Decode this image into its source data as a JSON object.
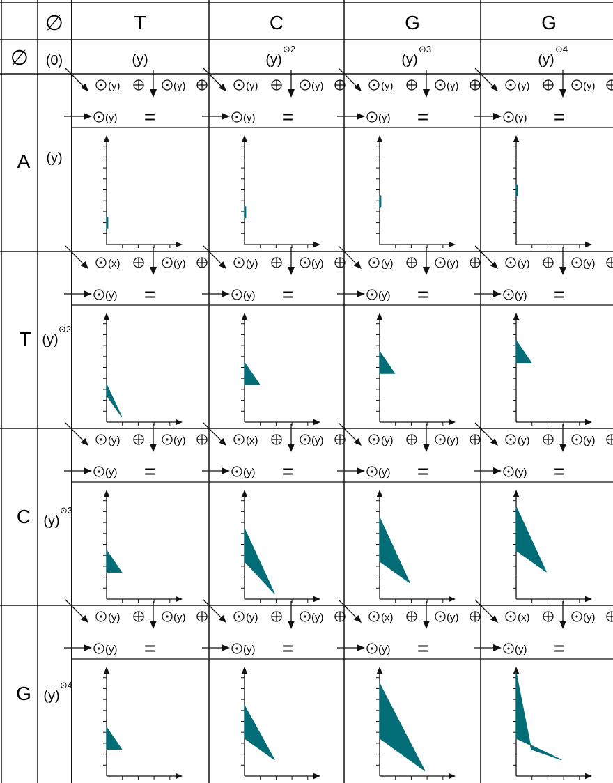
{
  "corner_symbol": "∅",
  "column_headers": [
    "T",
    "C",
    "G",
    "G"
  ],
  "column_subheaders": [
    {
      "base": "(y)",
      "sup": ""
    },
    {
      "base": "(y)",
      "sup": "⊙2"
    },
    {
      "base": "(y)",
      "sup": "⊙3"
    },
    {
      "base": "(y)",
      "sup": "⊙4"
    }
  ],
  "row0": {
    "symbol": "∅",
    "label": "(0)"
  },
  "row_headers": [
    "A",
    "T",
    "C",
    "G"
  ],
  "row_subheaders": [
    {
      "base": "(y)",
      "sup": ""
    },
    {
      "base": "(y)",
      "sup": "⊙2"
    },
    {
      "base": "(y)",
      "sup": "⊙3"
    },
    {
      "base": "(y)",
      "sup": "⊙4"
    }
  ],
  "cell_equation": {
    "odot": "⊙",
    "oplus": "⊕",
    "second": "(y)",
    "result": "(y)",
    "equals": "="
  },
  "cells": [
    [
      {
        "first": "(y)",
        "shape": [
          [
            0,
            1.45
          ],
          [
            0,
            2.45
          ],
          [
            0.08,
            2.45
          ],
          [
            0.08,
            1.45
          ]
        ]
      },
      {
        "first": "(y)",
        "shape": [
          [
            0,
            2.45
          ],
          [
            0,
            3.45
          ],
          [
            0.08,
            3.45
          ],
          [
            0.08,
            2.45
          ]
        ]
      },
      {
        "first": "(y)",
        "shape": [
          [
            0,
            3.45
          ],
          [
            0,
            4.45
          ],
          [
            0.08,
            4.45
          ],
          [
            0.08,
            3.45
          ]
        ]
      },
      {
        "first": "(y)",
        "shape": [
          [
            0,
            4.45
          ],
          [
            0,
            5.45
          ],
          [
            0.08,
            5.45
          ],
          [
            0.08,
            4.45
          ]
        ]
      }
    ],
    [
      {
        "first": "(x)",
        "shape": [
          [
            0,
            2.45
          ],
          [
            0,
            3.45
          ],
          [
            0.95,
            0.5
          ]
        ]
      },
      {
        "first": "(y)",
        "shape": [
          [
            0,
            3.45
          ],
          [
            0,
            5.45
          ],
          [
            0.95,
            3.45
          ]
        ]
      },
      {
        "first": "(y)",
        "shape": [
          [
            0,
            4.45
          ],
          [
            0,
            6.45
          ],
          [
            0.95,
            4.45
          ]
        ]
      },
      {
        "first": "(y)",
        "shape": [
          [
            0,
            5.45
          ],
          [
            0,
            7.45
          ],
          [
            0.95,
            5.45
          ]
        ]
      }
    ],
    [
      {
        "first": "(y)",
        "shape": [
          [
            0,
            2.45
          ],
          [
            0,
            4.45
          ],
          [
            0.95,
            2.45
          ]
        ]
      },
      {
        "first": "(x)",
        "shape": [
          [
            0,
            3.45
          ],
          [
            0,
            6.45
          ],
          [
            1.9,
            0.5
          ]
        ]
      },
      {
        "first": "(y)",
        "shape": [
          [
            0,
            3.45
          ],
          [
            0,
            7.45
          ],
          [
            1.9,
            1.5
          ]
        ]
      },
      {
        "first": "(y)",
        "shape": [
          [
            0,
            4.45
          ],
          [
            0,
            8.45
          ],
          [
            1.9,
            2.5
          ]
        ]
      }
    ],
    [
      {
        "first": "(y)",
        "shape": [
          [
            0,
            2.45
          ],
          [
            0,
            4.45
          ],
          [
            0.95,
            2.45
          ]
        ]
      },
      {
        "first": "(y)",
        "shape": [
          [
            0,
            3.45
          ],
          [
            0,
            6.45
          ],
          [
            1.9,
            1.5
          ]
        ]
      },
      {
        "first": "(x)",
        "shape": [
          [
            0,
            3.45
          ],
          [
            0,
            8.45
          ],
          [
            2.85,
            0.5
          ]
        ]
      },
      {
        "first": "(x)",
        "shape": [
          [
            0,
            3.45
          ],
          [
            0,
            9.45
          ],
          [
            0.95,
            2.45
          ],
          [
            2.85,
            1.5
          ]
        ]
      }
    ]
  ],
  "colors": {
    "fill": "#036d77",
    "line": "#111111"
  },
  "icons": [
    "empty-set-icon",
    "circled-dot-icon",
    "circled-plus-icon",
    "arrow-icon",
    "equals-icon"
  ]
}
